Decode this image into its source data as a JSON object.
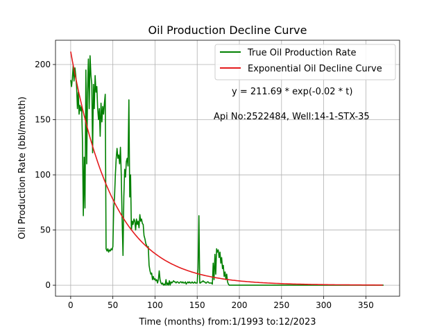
{
  "chart_data": {
    "type": "line",
    "title": "Oil Production Decline Curve",
    "xlabel": "Time (months) from:1/1993 to:12/2023",
    "ylabel": "Oil Production Rate (bbl/month)",
    "xlim": [
      -18,
      390
    ],
    "ylim": [
      -10,
      222
    ],
    "xticks": [
      0,
      50,
      100,
      150,
      200,
      250,
      300,
      350
    ],
    "yticks": [
      0,
      50,
      100,
      150,
      200
    ],
    "grid": true,
    "legend_placement": "top-right",
    "annotations": [
      "y = 211.69 * exp(-0.02 * t)",
      "Api No:2522484, Well:14-1-STX-35"
    ],
    "series": [
      {
        "name": "True Oil Production Rate",
        "color": "#008000",
        "points": [
          [
            0,
            186
          ],
          [
            1,
            180
          ],
          [
            2,
            187
          ],
          [
            3,
            199
          ],
          [
            4,
            185
          ],
          [
            5,
            197
          ],
          [
            6,
            190
          ],
          [
            7,
            180
          ],
          [
            8,
            160
          ],
          [
            9,
            175
          ],
          [
            10,
            155
          ],
          [
            11,
            163
          ],
          [
            12,
            158
          ],
          [
            13,
            162
          ],
          [
            14,
            130
          ],
          [
            15,
            63
          ],
          [
            16,
            116
          ],
          [
            17,
            70
          ],
          [
            18,
            195
          ],
          [
            19,
            110
          ],
          [
            20,
            175
          ],
          [
            21,
            205
          ],
          [
            22,
            160
          ],
          [
            23,
            208
          ],
          [
            24,
            190
          ],
          [
            25,
            182
          ],
          [
            26,
            120
          ],
          [
            27,
            182
          ],
          [
            28,
            160
          ],
          [
            29,
            190
          ],
          [
            30,
            175
          ],
          [
            31,
            180
          ],
          [
            32,
            160
          ],
          [
            33,
            150
          ],
          [
            34,
            160
          ],
          [
            35,
            135
          ],
          [
            36,
            165
          ],
          [
            37,
            148
          ],
          [
            38,
            162
          ],
          [
            39,
            155
          ],
          [
            40,
            165
          ],
          [
            41,
            173
          ],
          [
            42,
            33
          ],
          [
            43,
            31
          ],
          [
            44,
            33
          ],
          [
            45,
            30
          ],
          [
            46,
            32
          ],
          [
            47,
            31
          ],
          [
            48,
            33
          ],
          [
            49,
            32
          ],
          [
            50,
            35
          ],
          [
            51,
            70
          ],
          [
            52,
            80
          ],
          [
            53,
            100
          ],
          [
            54,
            115
          ],
          [
            55,
            124
          ],
          [
            56,
            115
          ],
          [
            57,
            118
          ],
          [
            58,
            110
          ],
          [
            59,
            125
          ],
          [
            60,
            100
          ],
          [
            61,
            60
          ],
          [
            62,
            27
          ],
          [
            63,
            80
          ],
          [
            64,
            105
          ],
          [
            65,
            98
          ],
          [
            66,
            112
          ],
          [
            67,
            115
          ],
          [
            68,
            108
          ],
          [
            69,
            168
          ],
          [
            70,
            80
          ],
          [
            71,
            100
          ],
          [
            72,
            50
          ],
          [
            73,
            58
          ],
          [
            74,
            55
          ],
          [
            75,
            60
          ],
          [
            76,
            58
          ],
          [
            77,
            50
          ],
          [
            78,
            60
          ],
          [
            79,
            55
          ],
          [
            80,
            58
          ],
          [
            81,
            52
          ],
          [
            82,
            64
          ],
          [
            83,
            58
          ],
          [
            84,
            60
          ],
          [
            85,
            56
          ],
          [
            86,
            55
          ],
          [
            87,
            45
          ],
          [
            88,
            42
          ],
          [
            89,
            38
          ],
          [
            90,
            36
          ],
          [
            91,
            34
          ],
          [
            92,
            35
          ],
          [
            93,
            18
          ],
          [
            94,
            13
          ],
          [
            95,
            10
          ],
          [
            96,
            11
          ],
          [
            97,
            5
          ],
          [
            98,
            8
          ],
          [
            99,
            5
          ],
          [
            100,
            6
          ],
          [
            101,
            4
          ],
          [
            102,
            5
          ],
          [
            103,
            2
          ],
          [
            104,
            5
          ],
          [
            105,
            13
          ],
          [
            106,
            5
          ],
          [
            107,
            2
          ],
          [
            108,
            1
          ],
          [
            109,
            2
          ],
          [
            110,
            0
          ],
          [
            111,
            1
          ],
          [
            112,
            0
          ],
          [
            113,
            5
          ],
          [
            114,
            0
          ],
          [
            115,
            2
          ],
          [
            116,
            0
          ],
          [
            117,
            4
          ],
          [
            118,
            0
          ],
          [
            119,
            3
          ],
          [
            120,
            2
          ],
          [
            121,
            3
          ],
          [
            122,
            4
          ],
          [
            123,
            3
          ],
          [
            124,
            3
          ],
          [
            125,
            2
          ],
          [
            126,
            3
          ],
          [
            127,
            3
          ],
          [
            128,
            2
          ],
          [
            129,
            2
          ],
          [
            130,
            3
          ],
          [
            131,
            3
          ],
          [
            132,
            2
          ],
          [
            133,
            3
          ],
          [
            134,
            2
          ],
          [
            135,
            2
          ],
          [
            136,
            3
          ],
          [
            137,
            1
          ],
          [
            138,
            2
          ],
          [
            139,
            3
          ],
          [
            140,
            2
          ],
          [
            141,
            3
          ],
          [
            142,
            2
          ],
          [
            143,
            2
          ],
          [
            144,
            3
          ],
          [
            145,
            2
          ],
          [
            146,
            2
          ],
          [
            147,
            3
          ],
          [
            148,
            2
          ],
          [
            149,
            2
          ],
          [
            150,
            2
          ],
          [
            151,
            15
          ],
          [
            152,
            63
          ],
          [
            153,
            2
          ],
          [
            154,
            2
          ],
          [
            155,
            3
          ],
          [
            156,
            3
          ],
          [
            157,
            4
          ],
          [
            158,
            3
          ],
          [
            159,
            3
          ],
          [
            160,
            2
          ],
          [
            161,
            2
          ],
          [
            162,
            3
          ],
          [
            163,
            3
          ],
          [
            164,
            2
          ],
          [
            165,
            2
          ],
          [
            166,
            2
          ],
          [
            167,
            2
          ],
          [
            168,
            1
          ],
          [
            169,
            20
          ],
          [
            170,
            5
          ],
          [
            171,
            28
          ],
          [
            172,
            10
          ],
          [
            173,
            33
          ],
          [
            174,
            30
          ],
          [
            175,
            32
          ],
          [
            176,
            25
          ],
          [
            177,
            30
          ],
          [
            178,
            20
          ],
          [
            179,
            25
          ],
          [
            180,
            15
          ],
          [
            181,
            18
          ],
          [
            182,
            8
          ],
          [
            183,
            12
          ],
          [
            184,
            5
          ],
          [
            185,
            10
          ],
          [
            186,
            3
          ],
          [
            187,
            1
          ],
          [
            188,
            0
          ],
          [
            200,
            0
          ],
          [
            220,
            0
          ],
          [
            250,
            0
          ],
          [
            280,
            0
          ],
          [
            300,
            0
          ],
          [
            330,
            0
          ],
          [
            350,
            0
          ],
          [
            371,
            0
          ]
        ]
      },
      {
        "name": "Exponential Oil Decline Curve",
        "color": "#e41a1c",
        "function": {
          "a": 211.69,
          "b": -0.02,
          "t_min": 0,
          "t_max": 371
        }
      }
    ]
  }
}
